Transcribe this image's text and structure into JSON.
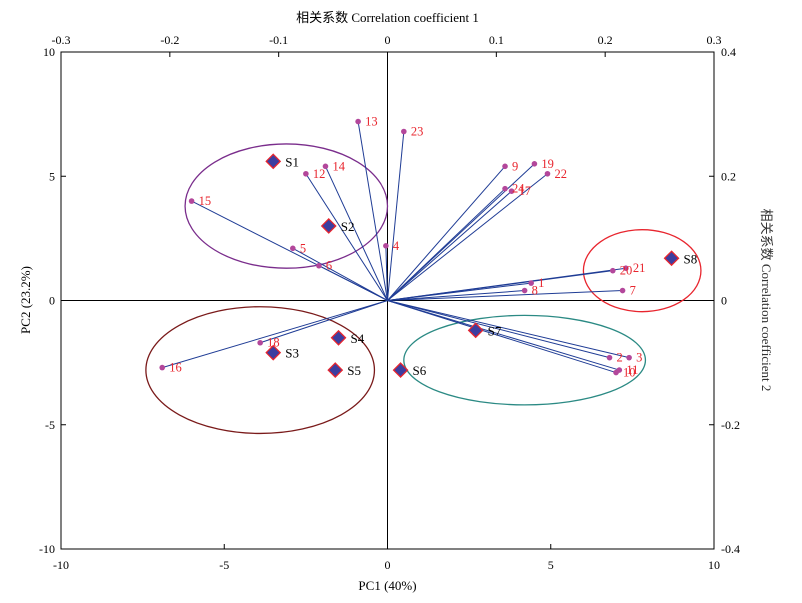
{
  "chart_data": {
    "type": "scatter",
    "subtype": "biplot",
    "title": "",
    "xlabel": "PC1 (40%)",
    "ylabel": "PC2 (23.2%)",
    "top_xlabel": "相关系数 Correlation coefficient 1",
    "right_ylabel": "相关系数 Correlation coefficient 2",
    "xlim": [
      -10,
      10
    ],
    "ylim": [
      -10,
      10
    ],
    "top_xlim": [
      -0.3,
      0.3
    ],
    "right_ylim": [
      -0.4,
      0.4
    ],
    "x_ticks": [
      "-10",
      "-5",
      "0",
      "5",
      "10"
    ],
    "y_ticks": [
      "-10",
      "-5",
      "0",
      "5",
      "10"
    ],
    "top_x_ticks": [
      "-0.3",
      "-0.2",
      "-0.1",
      "0",
      "0.1",
      "0.2",
      "0.3"
    ],
    "right_y_ticks": [
      "-0.4",
      "-0.2",
      "0",
      "0.2",
      "0.4"
    ],
    "grid": false,
    "zero_lines": true,
    "colors": {
      "samples_fill": "#3c3ea0",
      "samples_edge": "#e8252e",
      "variable_points": "#b3479b",
      "variable_labels": "#e8252e",
      "loading_lines": "#1f3c95",
      "group_purple": "#7a2d8c",
      "group_darkred": "#7a1a1a",
      "group_teal": "#2b8a84",
      "group_red": "#e8252e"
    },
    "samples": [
      {
        "label": "S1",
        "x": -3.5,
        "y": 5.6
      },
      {
        "label": "S2",
        "x": -1.8,
        "y": 3.0
      },
      {
        "label": "S3",
        "x": -3.5,
        "y": -2.1
      },
      {
        "label": "S4",
        "x": -1.5,
        "y": -1.5
      },
      {
        "label": "S5",
        "x": -1.6,
        "y": -2.8
      },
      {
        "label": "S6",
        "x": 0.4,
        "y": -2.8
      },
      {
        "label": "S7",
        "x": 2.7,
        "y": -1.2
      },
      {
        "label": "S8",
        "x": 8.7,
        "y": 1.7
      }
    ],
    "variables": [
      {
        "label": "1",
        "x": 4.4,
        "y": 0.7
      },
      {
        "label": "2",
        "x": 6.8,
        "y": -2.3
      },
      {
        "label": "3",
        "x": 7.4,
        "y": -2.3
      },
      {
        "label": "4",
        "x": -0.05,
        "y": 2.2
      },
      {
        "label": "5",
        "x": -2.9,
        "y": 2.1
      },
      {
        "label": "6",
        "x": -2.1,
        "y": 1.4
      },
      {
        "label": "7",
        "x": 7.2,
        "y": 0.4
      },
      {
        "label": "8",
        "x": 4.2,
        "y": 0.4
      },
      {
        "label": "9",
        "x": 3.6,
        "y": 5.4
      },
      {
        "label": "10",
        "x": 7.0,
        "y": -2.9
      },
      {
        "label": "11",
        "x": 7.1,
        "y": -2.8
      },
      {
        "label": "12",
        "x": -2.5,
        "y": 5.1
      },
      {
        "label": "13",
        "x": -0.9,
        "y": 7.2
      },
      {
        "label": "14",
        "x": -1.9,
        "y": 5.4
      },
      {
        "label": "15",
        "x": -6.0,
        "y": 4.0
      },
      {
        "label": "16",
        "x": -6.9,
        "y": -2.7
      },
      {
        "label": "17",
        "x": 3.8,
        "y": 4.4
      },
      {
        "label": "18",
        "x": -3.9,
        "y": -1.7
      },
      {
        "label": "19",
        "x": 4.5,
        "y": 5.5
      },
      {
        "label": "20",
        "x": 6.9,
        "y": 1.2
      },
      {
        "label": "21",
        "x": 7.3,
        "y": 1.3
      },
      {
        "label": "22",
        "x": 4.9,
        "y": 5.1
      },
      {
        "label": "23",
        "x": 0.5,
        "y": 6.8
      },
      {
        "label": "24",
        "x": 3.6,
        "y": 4.5
      }
    ],
    "groups": [
      {
        "name": "purple",
        "members": [
          "S1",
          "S2"
        ],
        "cx": -3.1,
        "cy": 3.8,
        "rx": 6.2,
        "ry": 5.0
      },
      {
        "name": "darkred",
        "members": [
          "S3",
          "S4",
          "S5"
        ],
        "cx": -3.9,
        "cy": -2.8,
        "rx": 7.0,
        "ry": 5.1
      },
      {
        "name": "teal",
        "members": [
          "S6",
          "S7"
        ],
        "cx": 4.2,
        "cy": -2.4,
        "rx": 7.4,
        "ry": 3.6
      },
      {
        "name": "red",
        "members": [
          "S8"
        ],
        "cx": 7.8,
        "cy": 1.2,
        "rx": 3.6,
        "ry": 3.3
      }
    ]
  }
}
